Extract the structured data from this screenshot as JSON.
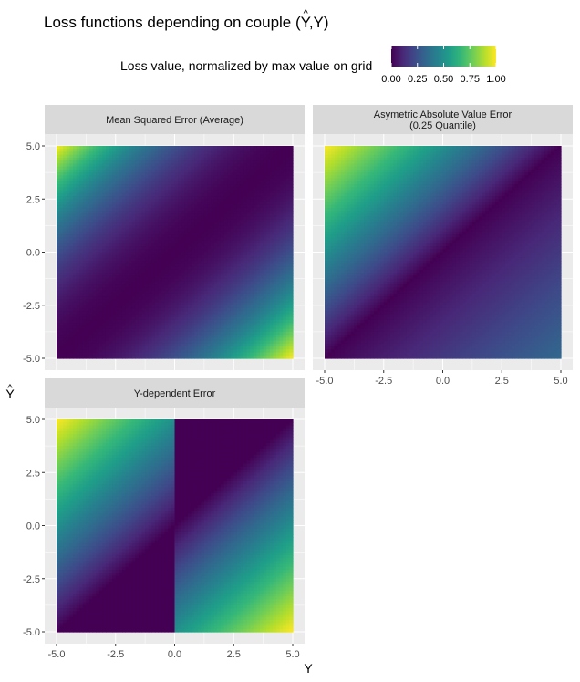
{
  "chart_data": {
    "type": "heatmap",
    "title": "Loss functions depending on couple (Ŷ,Y)",
    "title_hat_char": "^",
    "title_before_hat": "Loss functions depending on couple (",
    "title_hat_letter": "Y",
    "title_after_hat": ",Y)",
    "xlabel": "Y",
    "ylabel_hat": "^",
    "ylabel_letter": "Y",
    "xlim": [
      -5,
      5
    ],
    "ylim": [
      -5,
      5
    ],
    "ticks": [
      "-5.0",
      "-2.5",
      "0.0",
      "2.5",
      "5.0"
    ],
    "tick_values": [
      -5,
      -2.5,
      0,
      2.5,
      5
    ],
    "colorscale": "viridis",
    "legend": {
      "title": "Loss value, normalized by max value on grid",
      "position": "top",
      "breaks": [
        "0.00",
        "0.25",
        "0.50",
        "0.75",
        "1.00"
      ],
      "break_values": [
        0,
        0.25,
        0.5,
        0.75,
        1
      ]
    },
    "panels": [
      {
        "title_lines": [
          "Mean Squared Error (Average)"
        ],
        "formula": "mse",
        "value_range": [
          0,
          1
        ],
        "max_at": [
          [
            -5,
            5
          ],
          [
            5,
            -5
          ]
        ]
      },
      {
        "title_lines": [
          "Asymetric Absolute Value Error",
          "(0.25 Quantile)"
        ],
        "formula": "quantile_0.25",
        "value_range": [
          0,
          1
        ],
        "max_at": [
          [
            -5,
            5
          ]
        ]
      },
      {
        "title_lines": [
          "Y-dependent Error"
        ],
        "formula": "y_dependent",
        "value_range": [
          0,
          1
        ],
        "max_at": [
          [
            -5,
            5
          ],
          [
            5,
            -5
          ]
        ]
      }
    ]
  }
}
